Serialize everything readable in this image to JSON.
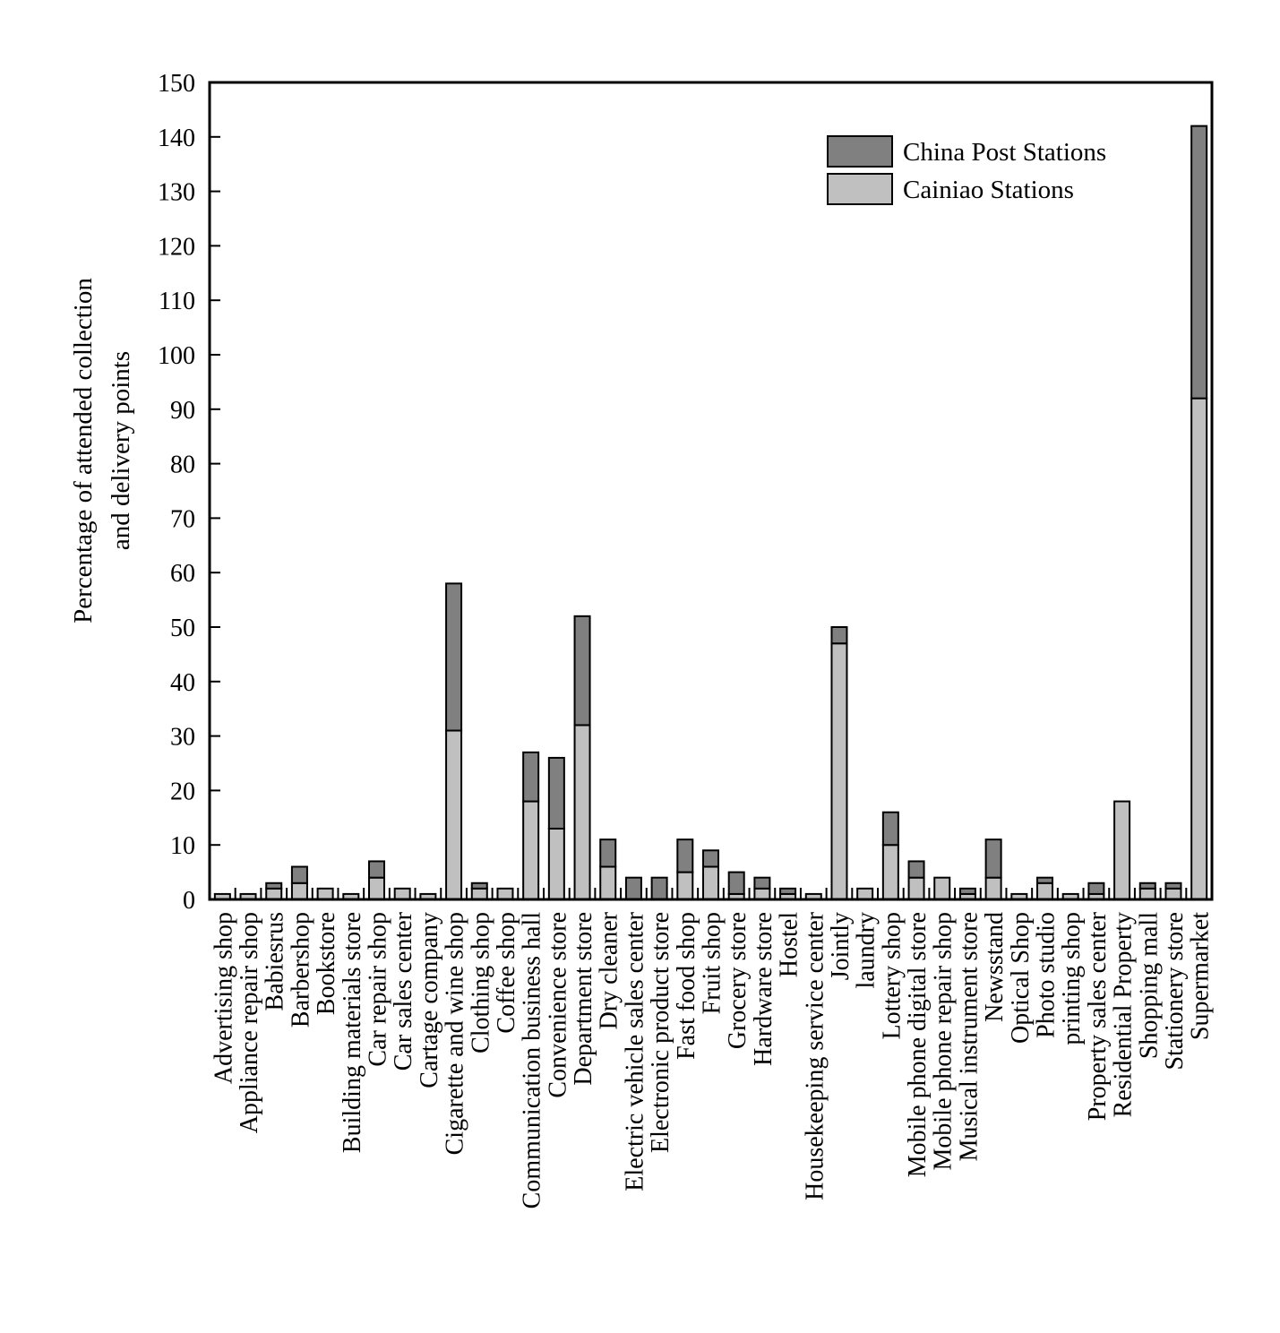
{
  "chart_data": {
    "type": "bar",
    "stacked": true,
    "ylabel": [
      "Percentage of attended collection",
      "and delivery points"
    ],
    "ylim": [
      0,
      150
    ],
    "yticks": [
      0,
      10,
      20,
      30,
      40,
      50,
      60,
      70,
      80,
      90,
      100,
      110,
      120,
      130,
      140,
      150
    ],
    "legend_position": "top-right",
    "grid": false,
    "categories": [
      "Advertising shop",
      "Appliance repair shop",
      "Babiesrus",
      "Barbershop",
      "Bookstore",
      "Building materials store",
      "Car repair shop",
      "Car sales center",
      "Cartage company",
      "Cigarette and wine shop",
      "Clothing shop",
      "Coffee shop",
      "Communication business hall",
      "Convenience store",
      "Department store",
      "Dry cleaner",
      "Electric vehicle sales center",
      "Electronic product store",
      "Fast food shop",
      "Fruit shop",
      "Grocery store",
      "Hardware store",
      "Hostel",
      "Housekeeping service center",
      "Jointly",
      "laundry",
      "Lottery shop",
      "Mobile phone digital store",
      "Mobile phone repair shop",
      "Musical instrument store",
      "Newsstand",
      "Optical Shop",
      "Photo studio",
      "printing shop",
      "Property sales center",
      "Residential Property",
      "Shopping mall",
      "Stationery store",
      "Supermarket"
    ],
    "series": [
      {
        "name": "Cainiao Stations",
        "color": "#c0c0c0",
        "values": [
          1,
          1,
          2,
          3,
          2,
          1,
          4,
          2,
          1,
          31,
          2,
          2,
          18,
          13,
          32,
          6,
          0,
          0,
          5,
          6,
          1,
          2,
          1,
          1,
          47,
          2,
          10,
          4,
          4,
          1,
          4,
          1,
          3,
          1,
          1,
          18,
          2,
          2,
          92
        ]
      },
      {
        "name": "China Post Stations",
        "color": "#808080",
        "values": [
          0,
          0,
          1,
          3,
          0,
          0,
          3,
          0,
          0,
          27,
          1,
          0,
          9,
          13,
          20,
          5,
          4,
          4,
          6,
          3,
          4,
          2,
          1,
          0,
          3,
          0,
          6,
          3,
          0,
          1,
          7,
          0,
          1,
          0,
          2,
          0,
          1,
          1,
          50
        ]
      }
    ],
    "legend": [
      "China Post Stations",
      "Cainiao Stations"
    ]
  }
}
